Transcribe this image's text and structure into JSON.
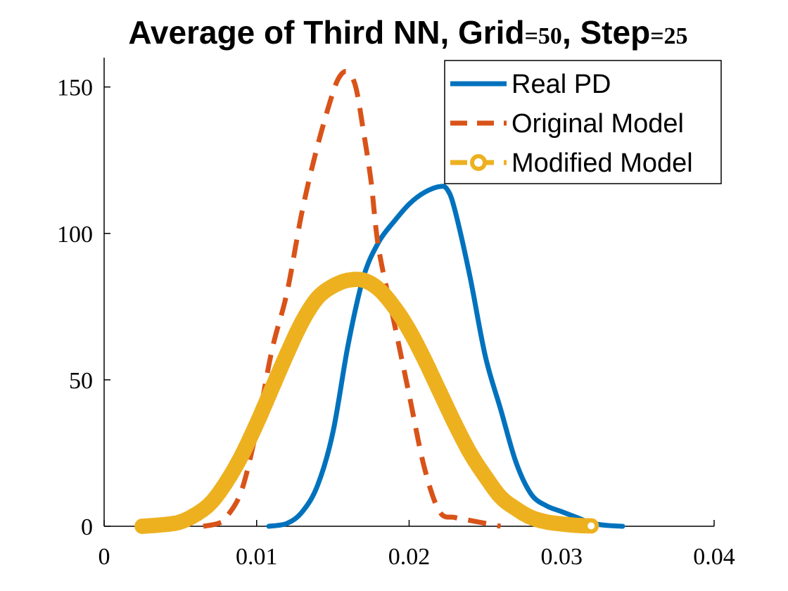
{
  "chart_data": {
    "type": "line",
    "title": "Average of Third NN, Grid=50, Step=25",
    "title_parts": [
      "Average of Third NN, Grid",
      "=50",
      ", Step",
      "=25"
    ],
    "xlabel": "",
    "ylabel": "",
    "xlim": [
      0,
      0.04
    ],
    "ylim": [
      0,
      160
    ],
    "x_ticks": [
      0,
      0.01,
      0.02,
      0.03,
      0.04
    ],
    "x_tick_labels": [
      "0",
      "0.01",
      "0.02",
      "0.03",
      "0.04"
    ],
    "y_ticks": [
      0,
      50,
      100,
      150
    ],
    "y_tick_labels": [
      "0",
      "50",
      "100",
      "150"
    ],
    "grid": false,
    "legend_position": "top-right",
    "series": [
      {
        "name": "Real PD",
        "color": "#0072BD",
        "style": "solid",
        "x": [
          0.0108,
          0.012,
          0.013,
          0.014,
          0.015,
          0.016,
          0.017,
          0.018,
          0.019,
          0.02,
          0.021,
          0.022,
          0.0225,
          0.023,
          0.024,
          0.025,
          0.026,
          0.027,
          0.028,
          0.029,
          0.03,
          0.031,
          0.032,
          0.033,
          0.034
        ],
        "y": [
          0,
          1,
          5,
          14,
          32,
          62,
          85,
          97,
          104,
          110,
          114,
          116,
          115,
          108,
          85,
          58,
          40,
          22,
          11,
          7,
          5,
          3,
          1,
          0.3,
          0
        ]
      },
      {
        "name": "Original Model",
        "color": "#D95319",
        "style": "dashed",
        "x": [
          0.0065,
          0.0075,
          0.008,
          0.009,
          0.01,
          0.011,
          0.012,
          0.013,
          0.014,
          0.015,
          0.0155,
          0.016,
          0.0165,
          0.017,
          0.0175,
          0.018,
          0.019,
          0.02,
          0.021,
          0.022,
          0.023,
          0.024,
          0.025,
          0.026
        ],
        "y": [
          0,
          1,
          3,
          12,
          33,
          60,
          80,
          108,
          130,
          148,
          154,
          155,
          150,
          135,
          118,
          95,
          70,
          45,
          20,
          5,
          3,
          2,
          1,
          0
        ]
      },
      {
        "name": "Modified Model",
        "color": "#EDB120",
        "style": "dashed-circle",
        "x": [
          0.0025,
          0.004,
          0.005,
          0.006,
          0.007,
          0.008,
          0.009,
          0.01,
          0.011,
          0.012,
          0.013,
          0.014,
          0.015,
          0.016,
          0.017,
          0.018,
          0.019,
          0.02,
          0.021,
          0.022,
          0.023,
          0.024,
          0.025,
          0.026,
          0.027,
          0.028,
          0.029,
          0.03,
          0.031,
          0.032
        ],
        "y": [
          0,
          0.6,
          1.5,
          4,
          8,
          15,
          24,
          35,
          47,
          59,
          70,
          78,
          82,
          84,
          84,
          81,
          75,
          67,
          57,
          46,
          35,
          25,
          17,
          10,
          6,
          3,
          1.5,
          0.8,
          0.3,
          0.1
        ]
      }
    ]
  }
}
